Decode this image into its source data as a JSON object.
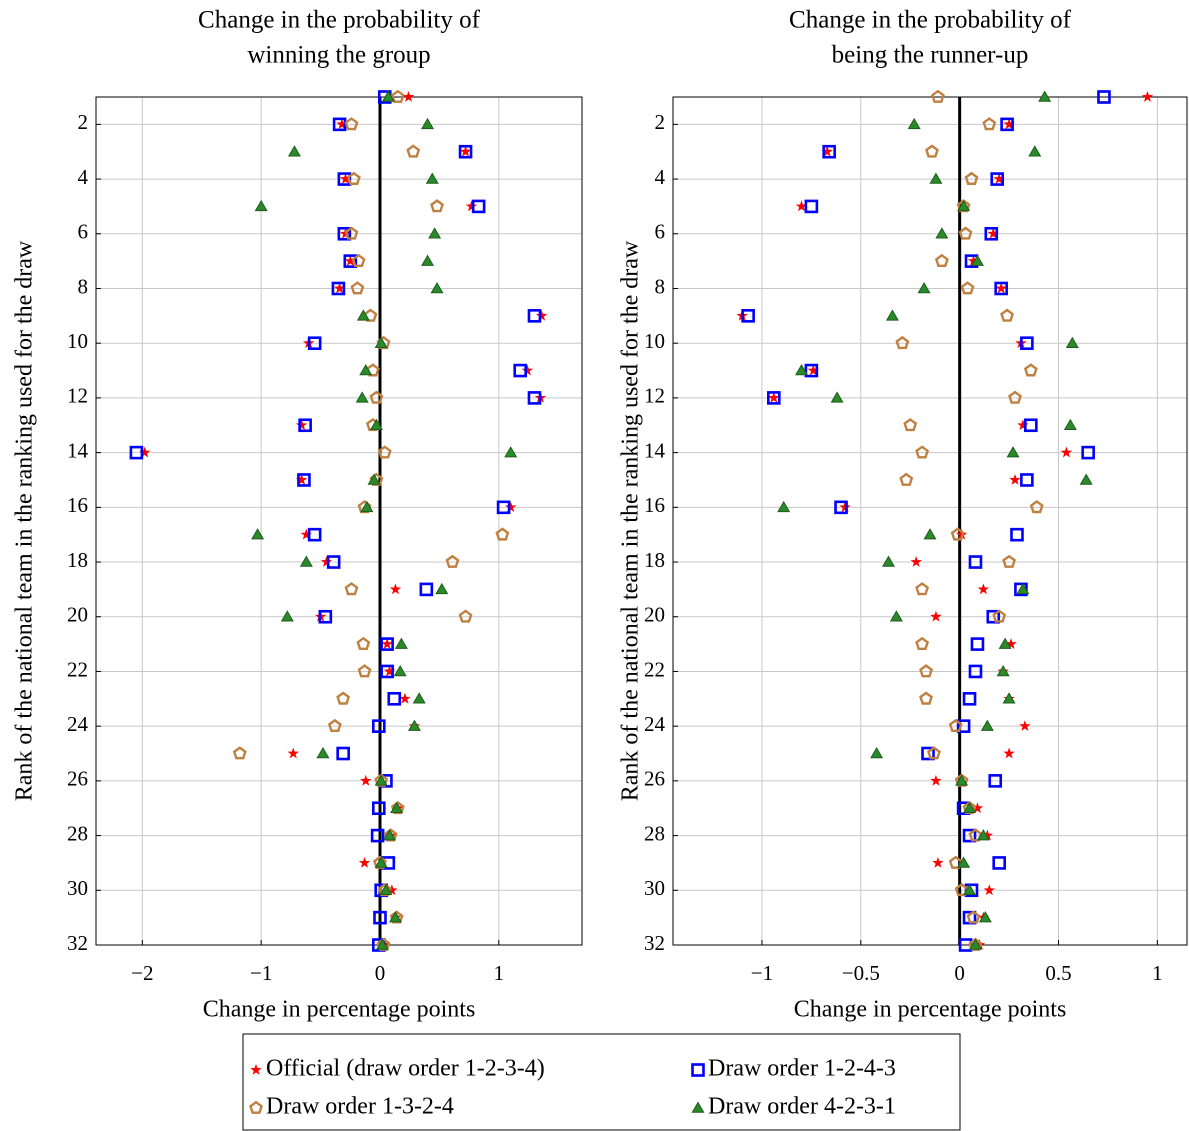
{
  "chart_data": [
    {
      "type": "scatter",
      "title": [
        "Change in the probability of",
        "winning the group"
      ],
      "xlabel": "Change in percentage points",
      "ylabel": "Rank of the national team in the ranking used for the draw",
      "xlim": [
        -2.39,
        1.7
      ],
      "xticks": [
        {
          "value": -2,
          "label": "−2"
        },
        {
          "value": -1,
          "label": "−1"
        },
        0,
        1
      ],
      "ylim": [
        1,
        32
      ],
      "y_inverted": true,
      "yticks": [
        2,
        4,
        6,
        8,
        10,
        12,
        14,
        16,
        18,
        20,
        22,
        24,
        26,
        28,
        30,
        32
      ],
      "grid": true,
      "zero_line": true,
      "legend": "bottom",
      "y": [
        1,
        2,
        3,
        4,
        5,
        6,
        7,
        8,
        9,
        10,
        11,
        12,
        13,
        14,
        15,
        16,
        17,
        18,
        19,
        20,
        21,
        22,
        23,
        24,
        25,
        26,
        27,
        28,
        29,
        30,
        31,
        32
      ],
      "series": [
        {
          "name": "Official (draw order 1-2-3-4)",
          "color": "#ff0000",
          "marker": "star",
          "x": [
            0.24,
            -0.32,
            0.72,
            -0.29,
            0.77,
            -0.29,
            -0.25,
            -0.34,
            1.36,
            -0.6,
            1.24,
            1.35,
            -0.66,
            -1.98,
            -0.66,
            1.1,
            -0.62,
            -0.45,
            0.13,
            -0.5,
            0.06,
            0.08,
            0.21,
            0.29,
            -0.73,
            -0.12,
            0.15,
            0.09,
            -0.13,
            0.1,
            0.13,
            0.03
          ]
        },
        {
          "name": "Draw order 1-2-4-3",
          "color": "#0000ff",
          "marker": "square",
          "x": [
            0.04,
            -0.34,
            0.72,
            -0.3,
            0.83,
            -0.3,
            -0.25,
            -0.35,
            1.3,
            -0.55,
            1.18,
            1.3,
            -0.63,
            -2.05,
            -0.64,
            1.04,
            -0.55,
            -0.39,
            0.39,
            -0.46,
            0.06,
            0.06,
            0.12,
            -0.01,
            -0.31,
            0.05,
            -0.01,
            -0.02,
            0.07,
            0.01,
            0.0,
            -0.01
          ]
        },
        {
          "name": "Draw order 1-3-2-4",
          "color": "#bf8040",
          "marker": "pentagon",
          "x": [
            0.15,
            -0.24,
            0.28,
            -0.22,
            0.48,
            -0.24,
            -0.18,
            -0.19,
            -0.08,
            0.03,
            -0.06,
            -0.03,
            -0.06,
            0.04,
            -0.03,
            -0.13,
            1.03,
            0.61,
            -0.24,
            0.72,
            -0.14,
            -0.13,
            -0.31,
            -0.38,
            -1.18,
            0.01,
            0.15,
            0.09,
            0.0,
            0.04,
            0.14,
            0.03
          ]
        },
        {
          "name": "Draw order 4-2-3-1",
          "color": "#2a8a2a",
          "marker": "triangle",
          "x": [
            0.07,
            0.4,
            -0.72,
            0.44,
            -1.0,
            0.46,
            0.4,
            0.48,
            -0.14,
            0.01,
            -0.12,
            -0.15,
            -0.03,
            1.1,
            -0.05,
            -0.11,
            -1.03,
            -0.62,
            0.52,
            -0.78,
            0.18,
            0.17,
            0.33,
            0.29,
            -0.48,
            0.01,
            0.14,
            0.08,
            0.01,
            0.05,
            0.13,
            0.02
          ]
        }
      ]
    },
    {
      "type": "scatter",
      "title": [
        "Change in the probability of",
        "being the runner-up"
      ],
      "xlabel": "Change in percentage points",
      "ylabel": "Rank of the national team in the ranking used for the draw",
      "xlim": [
        -1.45,
        1.15
      ],
      "xticks": [
        {
          "value": -1,
          "label": "−1"
        },
        {
          "value": -0.5,
          "label": "−0.5"
        },
        0,
        0.5,
        1
      ],
      "ylim": [
        1,
        32
      ],
      "y_inverted": true,
      "yticks": [
        2,
        4,
        6,
        8,
        10,
        12,
        14,
        16,
        18,
        20,
        22,
        24,
        26,
        28,
        30,
        32
      ],
      "grid": true,
      "zero_line": true,
      "y": [
        1,
        2,
        3,
        4,
        5,
        6,
        7,
        8,
        9,
        10,
        11,
        12,
        13,
        14,
        15,
        16,
        17,
        18,
        19,
        20,
        21,
        22,
        23,
        24,
        25,
        26,
        27,
        28,
        29,
        30,
        31,
        32
      ],
      "series": [
        {
          "color": "#ff0000",
          "marker": "star",
          "x": [
            0.95,
            0.25,
            -0.67,
            0.2,
            -0.8,
            0.17,
            0.07,
            0.21,
            -1.1,
            0.31,
            -0.74,
            -0.94,
            0.32,
            0.54,
            0.28,
            -0.58,
            0.01,
            -0.22,
            0.12,
            -0.12,
            0.26,
            0.22,
            0.25,
            0.33,
            0.25,
            -0.12,
            0.09,
            0.14,
            -0.11,
            0.15,
            0.12,
            0.1
          ]
        },
        {
          "color": "#0000ff",
          "marker": "square",
          "x": [
            0.73,
            0.24,
            -0.66,
            0.19,
            -0.75,
            0.16,
            0.06,
            0.21,
            -1.07,
            0.34,
            -0.75,
            -0.94,
            0.36,
            0.65,
            0.34,
            -0.6,
            0.29,
            0.08,
            0.31,
            0.17,
            0.09,
            0.08,
            0.05,
            0.02,
            -0.16,
            0.18,
            0.02,
            0.05,
            0.2,
            0.06,
            0.05,
            0.03
          ]
        },
        {
          "color": "#bf8040",
          "marker": "pentagon",
          "x": [
            -0.11,
            0.15,
            -0.14,
            0.06,
            0.02,
            0.03,
            -0.09,
            0.04,
            0.24,
            -0.29,
            0.36,
            0.28,
            -0.25,
            -0.19,
            -0.27,
            0.39,
            -0.01,
            0.25,
            -0.19,
            0.2,
            -0.19,
            -0.17,
            -0.17,
            -0.02,
            -0.13,
            0.01,
            0.05,
            0.08,
            -0.02,
            0.01,
            0.07,
            0.08
          ]
        },
        {
          "color": "#2a8a2a",
          "marker": "triangle",
          "x": [
            0.43,
            -0.23,
            0.38,
            -0.12,
            0.02,
            -0.09,
            0.09,
            -0.18,
            -0.34,
            0.57,
            -0.8,
            -0.62,
            0.56,
            0.27,
            0.64,
            -0.89,
            -0.15,
            -0.36,
            0.32,
            -0.32,
            0.23,
            0.22,
            0.25,
            0.14,
            -0.42,
            0.01,
            0.05,
            0.12,
            0.02,
            0.05,
            0.13,
            0.08
          ]
        }
      ]
    }
  ]
}
